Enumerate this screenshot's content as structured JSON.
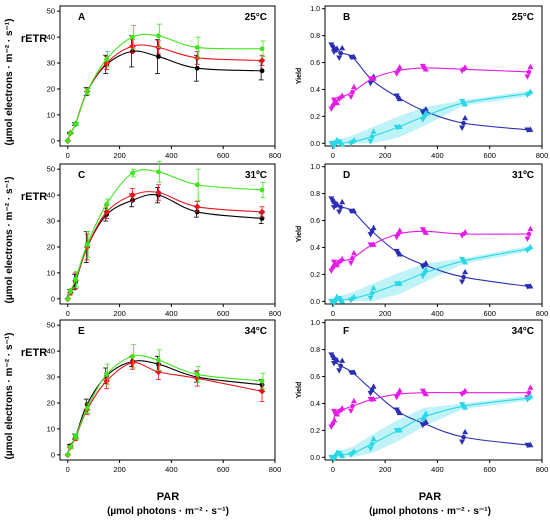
{
  "figure": {
    "x_title_main": "PAR",
    "x_title_sub": "(µmol photons · m⁻² · s⁻¹)"
  },
  "colors": {
    "black_series": "#000000",
    "red_series": "#e8131b",
    "green_series": "#3ee61a",
    "blue_series": "#2b2fb3",
    "magenta_series": "#e51ce5",
    "cyan_series": "#2ad7e6",
    "cyan_band": "#bff3f8"
  },
  "chart_data": [
    {
      "type": "line",
      "panel": "A",
      "temp": "25°C",
      "ylabel": "rETR",
      "ylabel_sub": "(µmol electrons · m⁻² · s⁻¹)",
      "xlim": [
        -30,
        800
      ],
      "ylim": [
        -2,
        52
      ],
      "x_ticks": [
        0,
        200,
        400,
        600,
        800
      ],
      "y_ticks": [
        0,
        10,
        20,
        30,
        40,
        50
      ],
      "x": [
        0,
        10,
        30,
        75,
        150,
        250,
        350,
        500,
        750
      ],
      "series": [
        {
          "color": "black",
          "values": [
            0,
            3,
            6.5,
            19,
            29.5,
            34.5,
            32.5,
            28,
            27
          ],
          "err": [
            0,
            0.3,
            0.5,
            1.5,
            3.5,
            6,
            6.5,
            5,
            3.5
          ]
        },
        {
          "color": "red",
          "values": [
            0,
            3,
            6.5,
            19,
            30,
            36.5,
            36,
            32,
            31
          ],
          "err": [
            0,
            0.3,
            0.5,
            1.2,
            2.5,
            2.5,
            2.5,
            2.5,
            2
          ]
        },
        {
          "color": "green",
          "values": [
            0,
            3,
            6.5,
            19,
            31.5,
            40,
            40.5,
            36,
            35.5
          ],
          "err": [
            0,
            0.3,
            0.5,
            1.2,
            3,
            4.5,
            4.5,
            4,
            3
          ]
        }
      ]
    },
    {
      "type": "scatter",
      "panel": "B",
      "temp": "25°C",
      "ylabel": "Yield",
      "xlim": [
        -30,
        800
      ],
      "ylim": [
        -0.02,
        1.02
      ],
      "x_ticks": [
        0,
        200,
        400,
        600,
        800
      ],
      "y_ticks": [
        "0.0",
        "0.2",
        "0.4",
        "0.6",
        "0.8",
        "1.0"
      ],
      "x": [
        0,
        10,
        30,
        75,
        150,
        250,
        350,
        500,
        750
      ],
      "series": [
        {
          "color": "blue",
          "values": [
            0.72,
            0.69,
            0.67,
            0.64,
            0.47,
            0.34,
            0.24,
            0.15,
            0.1
          ]
        },
        {
          "color": "magenta",
          "values": [
            0.28,
            0.31,
            0.34,
            0.38,
            0.48,
            0.54,
            0.56,
            0.55,
            0.53
          ]
        },
        {
          "color": "cyan",
          "values": [
            0,
            0,
            0,
            0.01,
            0.05,
            0.12,
            0.2,
            0.3,
            0.37
          ]
        }
      ]
    },
    {
      "type": "line",
      "panel": "C",
      "temp": "31ºC",
      "ylabel": "rETR",
      "ylabel_sub": "(µmol electrons · m⁻² · s⁻¹)",
      "xlim": [
        -30,
        800
      ],
      "ylim": [
        -2,
        52
      ],
      "x_ticks": [
        0,
        200,
        400,
        600,
        800
      ],
      "y_ticks": [
        0,
        10,
        20,
        30,
        40,
        50
      ],
      "x": [
        0,
        10,
        30,
        75,
        150,
        250,
        350,
        500,
        750
      ],
      "series": [
        {
          "color": "black",
          "values": [
            0,
            2.5,
            6.5,
            20,
            32.5,
            38,
            40,
            33.5,
            31
          ],
          "err": [
            0,
            1,
            3,
            6,
            2.5,
            2.5,
            3,
            2,
            2
          ]
        },
        {
          "color": "red",
          "values": [
            0,
            2.5,
            7,
            20,
            33.5,
            40,
            41,
            35.5,
            33.5
          ],
          "err": [
            0,
            1,
            3,
            5,
            2.5,
            2.5,
            3,
            2,
            2
          ]
        },
        {
          "color": "green",
          "values": [
            0,
            3,
            7.5,
            21,
            36.5,
            48.5,
            49,
            44,
            42
          ],
          "err": [
            0,
            1,
            3,
            5,
            2,
            1.5,
            4,
            6,
            3
          ]
        }
      ]
    },
    {
      "type": "scatter",
      "panel": "D",
      "temp": "31ºC",
      "ylabel": "Yield",
      "xlim": [
        -30,
        800
      ],
      "ylim": [
        -0.02,
        1.02
      ],
      "x_ticks": [
        0,
        200,
        400,
        600,
        800
      ],
      "y_ticks": [
        "0.0",
        "0.2",
        "0.4",
        "0.6",
        "0.8",
        "1.0"
      ],
      "x": [
        0,
        10,
        30,
        75,
        150,
        250,
        350,
        500,
        750
      ],
      "series": [
        {
          "color": "blue",
          "values": [
            0.75,
            0.71,
            0.7,
            0.67,
            0.52,
            0.36,
            0.27,
            0.18,
            0.11
          ]
        },
        {
          "color": "magenta",
          "values": [
            0.25,
            0.28,
            0.3,
            0.32,
            0.42,
            0.5,
            0.52,
            0.5,
            0.5
          ]
        },
        {
          "color": "cyan",
          "values": [
            0,
            0.01,
            0.01,
            0.02,
            0.06,
            0.13,
            0.21,
            0.3,
            0.39
          ]
        }
      ]
    },
    {
      "type": "line",
      "panel": "E",
      "temp": "34°C",
      "ylabel": "rETR",
      "ylabel_sub": "(µmol electrons · m⁻² · s⁻¹)",
      "xlim": [
        -30,
        800
      ],
      "ylim": [
        -2,
        52
      ],
      "x_ticks": [
        0,
        200,
        400,
        600,
        800
      ],
      "y_ticks": [
        0,
        10,
        20,
        30,
        40,
        50
      ],
      "x": [
        0,
        10,
        30,
        75,
        150,
        250,
        350,
        500,
        750
      ],
      "series": [
        {
          "color": "black",
          "values": [
            0,
            3.5,
            7,
            19.5,
            30.5,
            36,
            35,
            30,
            27
          ],
          "err": [
            0,
            0.5,
            1,
            2,
            3,
            2,
            3,
            2,
            2
          ]
        },
        {
          "color": "red",
          "values": [
            0,
            3,
            6.5,
            17.5,
            28.5,
            35.5,
            32,
            29.5,
            24.5
          ],
          "err": [
            0,
            0.5,
            1,
            2,
            3,
            2.5,
            3,
            3,
            4
          ]
        },
        {
          "color": "green",
          "values": [
            0,
            3,
            7,
            18,
            31,
            38,
            36.5,
            31,
            28.5
          ],
          "err": [
            0,
            0.5,
            1,
            2,
            4,
            4.5,
            4,
            3,
            3
          ]
        }
      ]
    },
    {
      "type": "scatter",
      "panel": "F",
      "temp": "34°C",
      "ylabel": "Yield",
      "xlim": [
        -30,
        800
      ],
      "ylim": [
        -0.02,
        1.02
      ],
      "x_ticks": [
        0,
        200,
        400,
        600,
        800
      ],
      "y_ticks": [
        "0.0",
        "0.2",
        "0.4",
        "0.6",
        "0.8",
        "1.0"
      ],
      "x": [
        0,
        10,
        30,
        75,
        150,
        250,
        350,
        500,
        750
      ],
      "series": [
        {
          "color": "blue",
          "values": [
            0.75,
            0.71,
            0.68,
            0.63,
            0.5,
            0.34,
            0.25,
            0.15,
            0.09
          ]
        },
        {
          "color": "magenta",
          "values": [
            0.25,
            0.33,
            0.35,
            0.38,
            0.43,
            0.47,
            0.48,
            0.48,
            0.48
          ]
        },
        {
          "color": "cyan",
          "values": [
            0,
            0.01,
            0.02,
            0.03,
            0.1,
            0.2,
            0.3,
            0.38,
            0.44
          ]
        }
      ]
    }
  ]
}
